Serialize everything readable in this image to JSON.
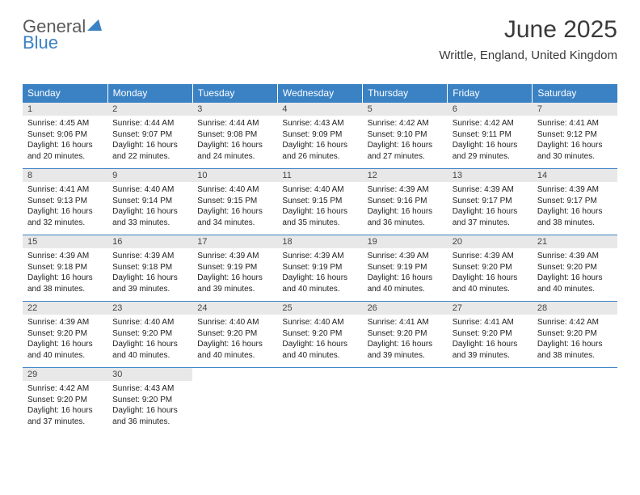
{
  "logo": {
    "text1": "General",
    "text2": "Blue"
  },
  "header": {
    "title": "June 2025",
    "subtitle": "Writtle, England, United Kingdom"
  },
  "colors": {
    "header_bg": "#3b82c4",
    "header_text": "#ffffff",
    "daynum_bg": "#e8e8e8",
    "border": "#3b82c4"
  },
  "weekdays": [
    "Sunday",
    "Monday",
    "Tuesday",
    "Wednesday",
    "Thursday",
    "Friday",
    "Saturday"
  ],
  "weeks": [
    [
      {
        "n": "1",
        "sr": "4:45 AM",
        "ss": "9:06 PM",
        "dl": "16 hours and 20 minutes."
      },
      {
        "n": "2",
        "sr": "4:44 AM",
        "ss": "9:07 PM",
        "dl": "16 hours and 22 minutes."
      },
      {
        "n": "3",
        "sr": "4:44 AM",
        "ss": "9:08 PM",
        "dl": "16 hours and 24 minutes."
      },
      {
        "n": "4",
        "sr": "4:43 AM",
        "ss": "9:09 PM",
        "dl": "16 hours and 26 minutes."
      },
      {
        "n": "5",
        "sr": "4:42 AM",
        "ss": "9:10 PM",
        "dl": "16 hours and 27 minutes."
      },
      {
        "n": "6",
        "sr": "4:42 AM",
        "ss": "9:11 PM",
        "dl": "16 hours and 29 minutes."
      },
      {
        "n": "7",
        "sr": "4:41 AM",
        "ss": "9:12 PM",
        "dl": "16 hours and 30 minutes."
      }
    ],
    [
      {
        "n": "8",
        "sr": "4:41 AM",
        "ss": "9:13 PM",
        "dl": "16 hours and 32 minutes."
      },
      {
        "n": "9",
        "sr": "4:40 AM",
        "ss": "9:14 PM",
        "dl": "16 hours and 33 minutes."
      },
      {
        "n": "10",
        "sr": "4:40 AM",
        "ss": "9:15 PM",
        "dl": "16 hours and 34 minutes."
      },
      {
        "n": "11",
        "sr": "4:40 AM",
        "ss": "9:15 PM",
        "dl": "16 hours and 35 minutes."
      },
      {
        "n": "12",
        "sr": "4:39 AM",
        "ss": "9:16 PM",
        "dl": "16 hours and 36 minutes."
      },
      {
        "n": "13",
        "sr": "4:39 AM",
        "ss": "9:17 PM",
        "dl": "16 hours and 37 minutes."
      },
      {
        "n": "14",
        "sr": "4:39 AM",
        "ss": "9:17 PM",
        "dl": "16 hours and 38 minutes."
      }
    ],
    [
      {
        "n": "15",
        "sr": "4:39 AM",
        "ss": "9:18 PM",
        "dl": "16 hours and 38 minutes."
      },
      {
        "n": "16",
        "sr": "4:39 AM",
        "ss": "9:18 PM",
        "dl": "16 hours and 39 minutes."
      },
      {
        "n": "17",
        "sr": "4:39 AM",
        "ss": "9:19 PM",
        "dl": "16 hours and 39 minutes."
      },
      {
        "n": "18",
        "sr": "4:39 AM",
        "ss": "9:19 PM",
        "dl": "16 hours and 40 minutes."
      },
      {
        "n": "19",
        "sr": "4:39 AM",
        "ss": "9:19 PM",
        "dl": "16 hours and 40 minutes."
      },
      {
        "n": "20",
        "sr": "4:39 AM",
        "ss": "9:20 PM",
        "dl": "16 hours and 40 minutes."
      },
      {
        "n": "21",
        "sr": "4:39 AM",
        "ss": "9:20 PM",
        "dl": "16 hours and 40 minutes."
      }
    ],
    [
      {
        "n": "22",
        "sr": "4:39 AM",
        "ss": "9:20 PM",
        "dl": "16 hours and 40 minutes."
      },
      {
        "n": "23",
        "sr": "4:40 AM",
        "ss": "9:20 PM",
        "dl": "16 hours and 40 minutes."
      },
      {
        "n": "24",
        "sr": "4:40 AM",
        "ss": "9:20 PM",
        "dl": "16 hours and 40 minutes."
      },
      {
        "n": "25",
        "sr": "4:40 AM",
        "ss": "9:20 PM",
        "dl": "16 hours and 40 minutes."
      },
      {
        "n": "26",
        "sr": "4:41 AM",
        "ss": "9:20 PM",
        "dl": "16 hours and 39 minutes."
      },
      {
        "n": "27",
        "sr": "4:41 AM",
        "ss": "9:20 PM",
        "dl": "16 hours and 39 minutes."
      },
      {
        "n": "28",
        "sr": "4:42 AM",
        "ss": "9:20 PM",
        "dl": "16 hours and 38 minutes."
      }
    ],
    [
      {
        "n": "29",
        "sr": "4:42 AM",
        "ss": "9:20 PM",
        "dl": "16 hours and 37 minutes."
      },
      {
        "n": "30",
        "sr": "4:43 AM",
        "ss": "9:20 PM",
        "dl": "16 hours and 36 minutes."
      },
      null,
      null,
      null,
      null,
      null
    ]
  ],
  "labels": {
    "sunrise": "Sunrise: ",
    "sunset": "Sunset: ",
    "daylight": "Daylight: "
  }
}
